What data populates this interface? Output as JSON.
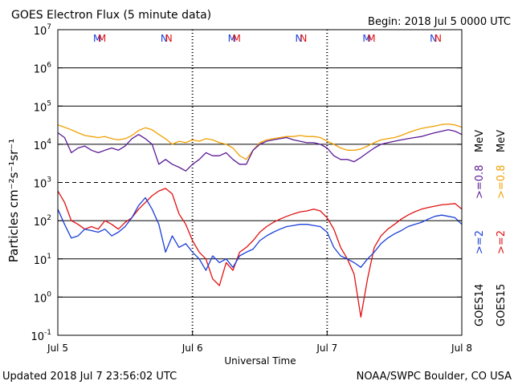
{
  "header": {
    "title": "GOES Electron Flux (5 minute data)",
    "begin": "Begin: 2018 Jul 5 0000 UTC"
  },
  "footer": {
    "updated": "Updated 2018 Jul  7 23:56:02 UTC",
    "credit": "NOAA/SWPC Boulder, CO USA"
  },
  "chart_data": {
    "type": "line",
    "title": "GOES Electron Flux (5 minute data)",
    "xlabel": "Universal Time",
    "ylabel": "Particles cm⁻²s⁻¹sr⁻¹",
    "y_scale": "log",
    "ylim": [
      0.1,
      10000000
    ],
    "xlim": [
      0,
      3
    ],
    "x_ticks": [
      {
        "value": 0,
        "label": "Jul 5"
      },
      {
        "value": 1,
        "label": "Jul 6"
      },
      {
        "value": 2,
        "label": "Jul 7"
      },
      {
        "value": 3,
        "label": "Jul 8"
      }
    ],
    "y_ticks": [
      {
        "value": 0.1,
        "base": "10",
        "exp": "-1"
      },
      {
        "value": 1,
        "base": "10",
        "exp": "0"
      },
      {
        "value": 10,
        "base": "10",
        "exp": "1"
      },
      {
        "value": 100,
        "base": "10",
        "exp": "2"
      },
      {
        "value": 1000,
        "base": "10",
        "exp": "3"
      },
      {
        "value": 10000,
        "base": "10",
        "exp": "4"
      },
      {
        "value": 100000,
        "base": "10",
        "exp": "5"
      },
      {
        "value": 1000000,
        "base": "10",
        "exp": "6"
      },
      {
        "value": 10000000,
        "base": "10",
        "exp": "7"
      }
    ],
    "dashed_threshold": 1000,
    "grid": true,
    "legend_position": "right",
    "legend": {
      "satellites": [
        {
          "label": "GOES14",
          "color": "#000000"
        },
        {
          "label": "GOES15",
          "color": "#000000"
        }
      ],
      "entries": [
        {
          "label": ">=2",
          "color": "#1a3fd8"
        },
        {
          "label": ">=2",
          "color": "#e01010"
        },
        {
          "label": ">=0.8",
          "color": "#5a1a96"
        },
        {
          "label": ">=0.8",
          "color": "#f0a000"
        },
        {
          "unit": "MeV"
        },
        {
          "unit": "MeV"
        }
      ]
    },
    "midnight_markers": [
      {
        "x": 0.0,
        "label": "M",
        "color": "#1a3fd8"
      },
      {
        "x": 0.035,
        "label": "M",
        "color": "#e01010"
      },
      {
        "x": 0.5,
        "label": "N",
        "color": "#1a3fd8"
      },
      {
        "x": 0.535,
        "label": "N",
        "color": "#e01010"
      },
      {
        "x": 1.0,
        "label": "M",
        "color": "#1a3fd8"
      },
      {
        "x": 1.035,
        "label": "M",
        "color": "#e01010"
      },
      {
        "x": 1.5,
        "label": "N",
        "color": "#1a3fd8"
      },
      {
        "x": 1.535,
        "label": "N",
        "color": "#e01010"
      },
      {
        "x": 2.0,
        "label": "M",
        "color": "#1a3fd8"
      },
      {
        "x": 2.035,
        "label": "M",
        "color": "#e01010"
      },
      {
        "x": 2.5,
        "label": "N",
        "color": "#1a3fd8"
      },
      {
        "x": 2.535,
        "label": "N",
        "color": "#e01010"
      }
    ],
    "series": [
      {
        "name": "GOES15 >=0.8 MeV",
        "color": "#f0a000",
        "x": [
          0,
          0.05,
          0.1,
          0.15,
          0.2,
          0.25,
          0.3,
          0.35,
          0.4,
          0.45,
          0.5,
          0.55,
          0.6,
          0.65,
          0.7,
          0.75,
          0.8,
          0.85,
          0.9,
          0.95,
          1.0,
          1.05,
          1.1,
          1.15,
          1.2,
          1.25,
          1.3,
          1.35,
          1.4,
          1.45,
          1.5,
          1.55,
          1.6,
          1.65,
          1.7,
          1.75,
          1.8,
          1.85,
          1.9,
          1.95,
          2.0,
          2.05,
          2.1,
          2.15,
          2.2,
          2.25,
          2.3,
          2.35,
          2.4,
          2.45,
          2.5,
          2.55,
          2.6,
          2.65,
          2.7,
          2.75,
          2.8,
          2.85,
          2.9,
          2.95,
          3.0
        ],
        "y": [
          32000,
          28000,
          24000,
          20000,
          17000,
          16000,
          15000,
          16000,
          14000,
          13000,
          14000,
          17000,
          23000,
          27000,
          24000,
          18000,
          14000,
          10000,
          12000,
          11000,
          13000,
          12000,
          14000,
          13000,
          11000,
          10000,
          8000,
          5000,
          4000,
          7000,
          11000,
          13000,
          14000,
          15000,
          16000,
          16000,
          17000,
          16000,
          16000,
          15000,
          12000,
          10000,
          8000,
          7000,
          7000,
          7500,
          9000,
          11000,
          13000,
          14000,
          15000,
          17000,
          20000,
          23000,
          26000,
          28000,
          30000,
          33000,
          34000,
          32000,
          28000
        ]
      },
      {
        "name": "GOES14 >=0.8 MeV",
        "color": "#5a1a96",
        "x": [
          0,
          0.05,
          0.1,
          0.15,
          0.2,
          0.25,
          0.3,
          0.35,
          0.4,
          0.45,
          0.5,
          0.55,
          0.6,
          0.65,
          0.7,
          0.75,
          0.8,
          0.85,
          0.9,
          0.95,
          1.0,
          1.05,
          1.1,
          1.15,
          1.2,
          1.25,
          1.3,
          1.35,
          1.4,
          1.45,
          1.5,
          1.55,
          1.6,
          1.65,
          1.7,
          1.75,
          1.8,
          1.85,
          1.9,
          1.95,
          2.0,
          2.05,
          2.1,
          2.15,
          2.2,
          2.25,
          2.3,
          2.35,
          2.4,
          2.45,
          2.5,
          2.55,
          2.6,
          2.65,
          2.7,
          2.75,
          2.8,
          2.85,
          2.9,
          2.95,
          3.0
        ],
        "y": [
          20000,
          15000,
          6000,
          8000,
          9000,
          7000,
          6000,
          7000,
          8000,
          7000,
          9000,
          14000,
          18000,
          14000,
          10000,
          3000,
          4000,
          3000,
          2500,
          2000,
          3000,
          4000,
          6000,
          5000,
          5000,
          6000,
          4000,
          3000,
          3000,
          7000,
          10000,
          12000,
          13000,
          14000,
          15000,
          13000,
          12000,
          11000,
          11000,
          10000,
          8000,
          5000,
          4000,
          4000,
          3500,
          4500,
          6000,
          8000,
          10000,
          11000,
          12000,
          13000,
          14000,
          15000,
          16000,
          18000,
          20000,
          22000,
          24000,
          22000,
          18000
        ]
      },
      {
        "name": "GOES15 >=2 MeV",
        "color": "#e01010",
        "x": [
          0,
          0.05,
          0.1,
          0.15,
          0.2,
          0.25,
          0.3,
          0.35,
          0.4,
          0.45,
          0.5,
          0.55,
          0.6,
          0.65,
          0.7,
          0.75,
          0.8,
          0.85,
          0.9,
          0.95,
          1.0,
          1.05,
          1.1,
          1.15,
          1.2,
          1.25,
          1.3,
          1.35,
          1.4,
          1.45,
          1.5,
          1.55,
          1.6,
          1.65,
          1.7,
          1.75,
          1.8,
          1.85,
          1.9,
          1.95,
          2.0,
          2.05,
          2.1,
          2.15,
          2.2,
          2.25,
          2.3,
          2.35,
          2.4,
          2.45,
          2.5,
          2.55,
          2.6,
          2.65,
          2.7,
          2.75,
          2.8,
          2.85,
          2.9,
          2.95,
          3.0
        ],
        "y": [
          600,
          300,
          100,
          80,
          60,
          70,
          60,
          100,
          80,
          60,
          90,
          120,
          200,
          300,
          450,
          600,
          700,
          500,
          150,
          80,
          30,
          15,
          10,
          3,
          2,
          8,
          5,
          15,
          20,
          30,
          50,
          70,
          90,
          110,
          130,
          150,
          170,
          180,
          200,
          180,
          120,
          60,
          20,
          10,
          4,
          0.3,
          3,
          20,
          40,
          60,
          80,
          110,
          140,
          170,
          200,
          220,
          240,
          260,
          270,
          280,
          200
        ]
      },
      {
        "name": "GOES14 >=2 MeV",
        "color": "#1a3fd8",
        "x": [
          0,
          0.05,
          0.1,
          0.15,
          0.2,
          0.25,
          0.3,
          0.35,
          0.4,
          0.45,
          0.5,
          0.55,
          0.6,
          0.65,
          0.7,
          0.75,
          0.8,
          0.85,
          0.9,
          0.95,
          1.0,
          1.05,
          1.1,
          1.15,
          1.2,
          1.25,
          1.3,
          1.35,
          1.4,
          1.45,
          1.5,
          1.55,
          1.6,
          1.65,
          1.7,
          1.75,
          1.8,
          1.85,
          1.9,
          1.95,
          2.0,
          2.05,
          2.1,
          2.15,
          2.2,
          2.25,
          2.3,
          2.35,
          2.4,
          2.45,
          2.5,
          2.55,
          2.6,
          2.65,
          2.7,
          2.75,
          2.8,
          2.85,
          2.9,
          2.95,
          3.0
        ],
        "y": [
          200,
          80,
          35,
          40,
          60,
          55,
          50,
          60,
          40,
          50,
          70,
          120,
          250,
          400,
          200,
          80,
          15,
          40,
          20,
          25,
          15,
          10,
          5,
          12,
          8,
          10,
          6,
          12,
          15,
          18,
          30,
          40,
          50,
          60,
          70,
          75,
          80,
          80,
          75,
          70,
          50,
          20,
          12,
          10,
          8,
          6,
          10,
          15,
          25,
          35,
          45,
          55,
          70,
          80,
          90,
          110,
          130,
          140,
          130,
          120,
          80
        ]
      }
    ]
  }
}
